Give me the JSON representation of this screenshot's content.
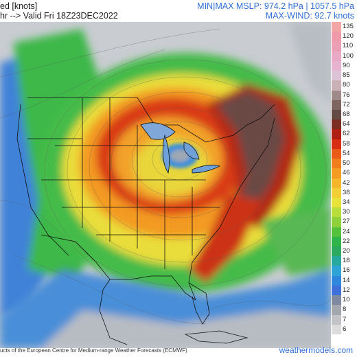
{
  "header": {
    "title_left": "ed [knots]",
    "valid_left": "hr --> Valid Fri 18Z23DEC2022",
    "mslp_label": "MIN|MAX MSLP: 974.2 hPa | 1057.5 hPa",
    "maxwind_label": "MAX-WIND: 92.7 knots"
  },
  "colorbar": {
    "levels": [
      {
        "label": "135",
        "color": "#f2a6a6"
      },
      {
        "label": "120",
        "color": "#ee9aa8"
      },
      {
        "label": "110",
        "color": "#eba0b6"
      },
      {
        "label": "100",
        "color": "#e8aac4"
      },
      {
        "label": "90",
        "color": "#e6b4cf"
      },
      {
        "label": "85",
        "color": "#dcc3d6"
      },
      {
        "label": "80",
        "color": "#c9b1b5"
      },
      {
        "label": "76",
        "color": "#9e8a88"
      },
      {
        "label": "72",
        "color": "#7d6560"
      },
      {
        "label": "68",
        "color": "#634a44"
      },
      {
        "label": "64",
        "color": "#7a2f22"
      },
      {
        "label": "62",
        "color": "#b01f13"
      },
      {
        "label": "58",
        "color": "#d72e14"
      },
      {
        "label": "54",
        "color": "#ea5b18"
      },
      {
        "label": "50",
        "color": "#f07e1c"
      },
      {
        "label": "46",
        "color": "#f49c22"
      },
      {
        "label": "42",
        "color": "#f6b62b"
      },
      {
        "label": "38",
        "color": "#f3cf36"
      },
      {
        "label": "34",
        "color": "#e8e33a"
      },
      {
        "label": "30",
        "color": "#b9dd3a"
      },
      {
        "label": "27",
        "color": "#8fd13a"
      },
      {
        "label": "24",
        "color": "#56c23b"
      },
      {
        "label": "22",
        "color": "#2fb44a"
      },
      {
        "label": "20",
        "color": "#2aa95f"
      },
      {
        "label": "18",
        "color": "#28a99f"
      },
      {
        "label": "16",
        "color": "#2ea3d5"
      },
      {
        "label": "14",
        "color": "#2f86dd"
      },
      {
        "label": "12",
        "color": "#3f6fd8"
      },
      {
        "label": "10",
        "color": "#7f8aa0"
      },
      {
        "label": "8",
        "color": "#a3a7ae"
      },
      {
        "label": "7",
        "color": "#c1c3c6"
      },
      {
        "label": "6",
        "color": "#dcdcdc"
      }
    ]
  },
  "footer": {
    "credit": "ucts of the European Centre for Medium-range Weather Forecasts (ECMWF)",
    "site": "weathermodels.com"
  },
  "map": {
    "storm_center_region": "Great Lakes",
    "strongest_winds_region": "Northeast US / Quebec",
    "palette": {
      "ocean_calm": "#c9cdd3",
      "land_light": "#d9dcdf",
      "blue": "#3f7fd8",
      "green": "#3bb44a",
      "yellow": "#f3d23a",
      "orange": "#f08a1e",
      "red": "#cf2a16",
      "darkred": "#8a2a1c",
      "brown": "#6a4c46",
      "border": "#111111"
    }
  }
}
